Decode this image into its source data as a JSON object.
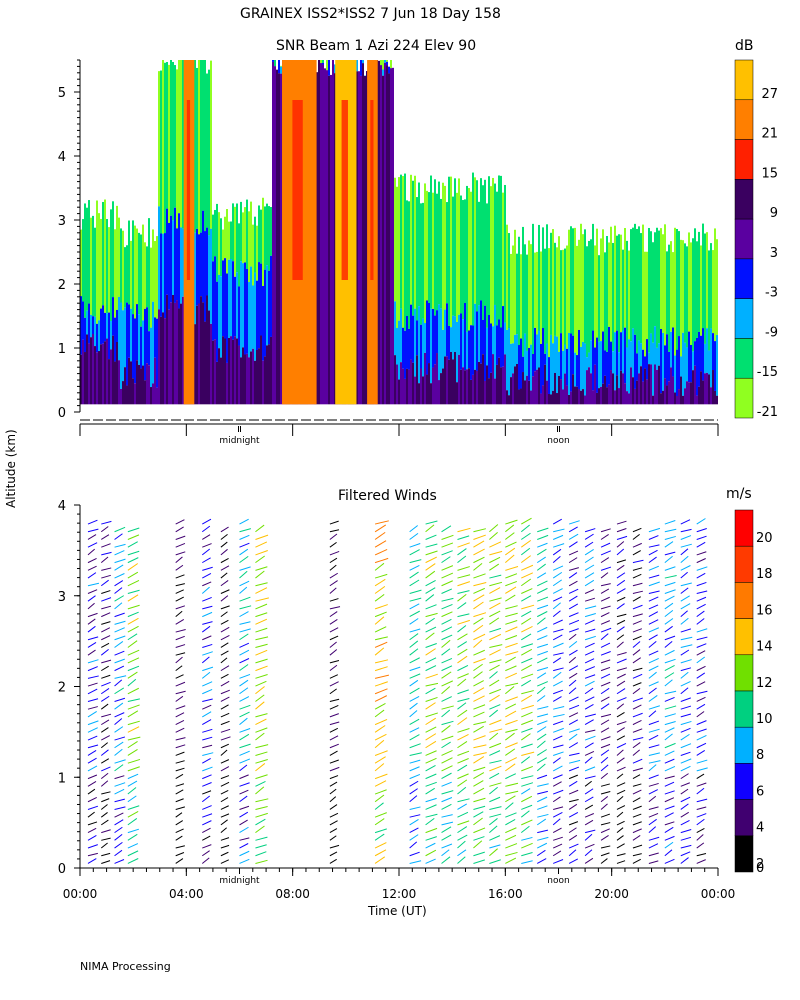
{
  "header": {
    "title": "GRAINEX ISS2*ISS2   7 Jun 18 Day 158"
  },
  "snr_panel": {
    "title": "SNR Beam 1 Azi 224 Elev 90",
    "colorbar_unit": "dB",
    "colorbar_ticks": [
      "27",
      "21",
      "15",
      "9",
      "3",
      "-3",
      "-9",
      "-15",
      "-21"
    ],
    "colors": [
      "#ffc000",
      "#ff7f00",
      "#ff2000",
      "#3a0060",
      "#5a00a0",
      "#0010ff",
      "#00b0ff",
      "#00e070",
      "#90ff20"
    ],
    "y_ticks": [
      "0",
      "1",
      "2",
      "3",
      "4",
      "5"
    ],
    "day_marks": [
      "midnight",
      "noon"
    ]
  },
  "wind_panel": {
    "title": "Filtered Winds",
    "colorbar_unit": "m/s",
    "colorbar_ticks": [
      "20",
      "18",
      "16",
      "14",
      "12",
      "10",
      "8",
      "6",
      "4",
      "2",
      "0"
    ],
    "colors": [
      "#ff0000",
      "#ff3a00",
      "#ff7a00",
      "#ffc000",
      "#70e000",
      "#00d080",
      "#00b0ff",
      "#1000ff",
      "#400070",
      "#000000"
    ],
    "y_ticks": [
      "0",
      "1",
      "2",
      "3",
      "4"
    ],
    "x_ticks": [
      "00:00",
      "04:00",
      "08:00",
      "12:00",
      "16:00",
      "20:00",
      "00:00"
    ],
    "day_marks": [
      "midnight",
      "noon"
    ]
  },
  "axes": {
    "ylabel": "Altitude (km)",
    "xlabel": "Time (UT)"
  },
  "footer": {
    "note": "NIMA Processing"
  },
  "chart_data": [
    {
      "type": "heatmap",
      "title": "SNR Beam 1 Azi 224 Elev 90",
      "xlabel": "",
      "ylabel": "Altitude (km)",
      "xlim": [
        0,
        24
      ],
      "ylim": [
        0,
        5.5
      ],
      "colorbar": {
        "label": "dB",
        "ticks": [
          27,
          21,
          15,
          9,
          3,
          -3,
          -9,
          -15,
          -21
        ]
      },
      "bands": [
        {
          "t0": 0.0,
          "t1": 1.5,
          "h_green": 3.1,
          "h_blue": 1.6,
          "h_dark": 1.0
        },
        {
          "t0": 1.5,
          "t1": 2.9,
          "h_green": 2.8,
          "h_blue": 1.5,
          "h_dark": 0.6
        },
        {
          "t0": 2.9,
          "t1": 4.9,
          "h_green": 5.5,
          "h_blue": 3.0,
          "h_dark": 1.6
        },
        {
          "t0": 4.9,
          "t1": 7.2,
          "h_green": 3.1,
          "h_blue": 2.2,
          "h_dark": 1.0
        },
        {
          "t0": 7.2,
          "t1": 11.8,
          "h_green": 5.5,
          "h_blue": 5.5,
          "h_dark": 5.5
        },
        {
          "t0": 11.8,
          "t1": 16.0,
          "h_green": 3.5,
          "h_blue": 1.5,
          "h_dark": 0.7
        },
        {
          "t0": 16.0,
          "t1": 24.0,
          "h_green": 2.7,
          "h_blue": 1.1,
          "h_dark": 0.5
        }
      ],
      "hot_columns": [
        {
          "t0": 3.9,
          "t1": 4.3,
          "level": 21
        },
        {
          "t0": 7.6,
          "t1": 8.9,
          "level": 21
        },
        {
          "t0": 9.6,
          "t1": 10.4,
          "level": 27
        },
        {
          "t0": 10.8,
          "t1": 11.2,
          "level": 21
        }
      ]
    },
    {
      "type": "scatter",
      "title": "Filtered Winds",
      "xlabel": "Time (UT)",
      "ylabel": "Altitude (km)",
      "xlim": [
        0,
        24
      ],
      "ylim": [
        0,
        4
      ],
      "colorbar": {
        "label": "m/s",
        "ticks": [
          20,
          18,
          16,
          14,
          12,
          10,
          8,
          6,
          4,
          2,
          0
        ]
      },
      "wind_columns": [
        {
          "t": 0.3,
          "speed": 6
        },
        {
          "t": 0.8,
          "speed": 4
        },
        {
          "t": 1.3,
          "speed": 8
        },
        {
          "t": 1.8,
          "speed": 12
        },
        {
          "t": 3.6,
          "speed": 3
        },
        {
          "t": 4.6,
          "speed": 6
        },
        {
          "t": 5.3,
          "speed": 3
        },
        {
          "t": 6.0,
          "speed": 8
        },
        {
          "t": 6.6,
          "speed": 13
        },
        {
          "t": 9.4,
          "speed": 3
        },
        {
          "t": 11.1,
          "speed": 14
        },
        {
          "t": 12.4,
          "speed": 9
        },
        {
          "t": 13.0,
          "speed": 12
        },
        {
          "t": 13.6,
          "speed": 11
        },
        {
          "t": 14.2,
          "speed": 12
        },
        {
          "t": 14.8,
          "speed": 13
        },
        {
          "t": 15.4,
          "speed": 12
        },
        {
          "t": 16.0,
          "speed": 13
        },
        {
          "t": 16.6,
          "speed": 12
        },
        {
          "t": 17.2,
          "speed": 9
        },
        {
          "t": 17.8,
          "speed": 7
        },
        {
          "t": 18.4,
          "speed": 6
        },
        {
          "t": 19.0,
          "speed": 6
        },
        {
          "t": 19.6,
          "speed": 5
        },
        {
          "t": 20.2,
          "speed": 4
        },
        {
          "t": 20.8,
          "speed": 4
        },
        {
          "t": 21.4,
          "speed": 7
        },
        {
          "t": 22.0,
          "speed": 8
        },
        {
          "t": 22.6,
          "speed": 7
        },
        {
          "t": 23.2,
          "speed": 6
        }
      ]
    }
  ]
}
